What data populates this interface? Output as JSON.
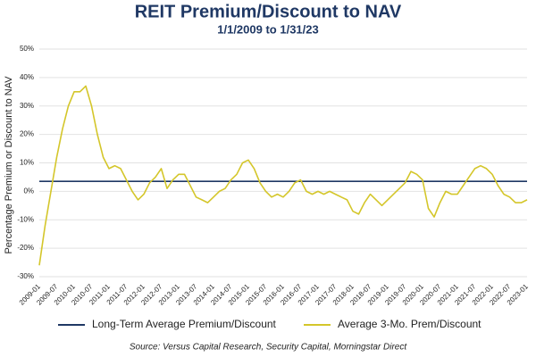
{
  "chart_data": {
    "type": "line",
    "title": "REIT Premium/Discount to NAV",
    "subtitle": "1/1/2009 to 1/31/23",
    "y_label": "Percentage Premium or Discount to NAV",
    "source": "Source: Versus Capital Research, Security Capital, Morningstar Direct",
    "categories": [
      "2009-01",
      null,
      null,
      "2009-07",
      null,
      null,
      "2010-01",
      null,
      null,
      "2010-07",
      null,
      null,
      "2011-01",
      null,
      null,
      "2011-07",
      null,
      null,
      "2012-01",
      null,
      null,
      "2012-07",
      null,
      null,
      "2013-01",
      null,
      null,
      "2013-07",
      null,
      null,
      "2014-01",
      null,
      null,
      "2014-07",
      null,
      null,
      "2015-01",
      null,
      null,
      "2015-07",
      null,
      null,
      "2016-01",
      null,
      null,
      "2016-07",
      null,
      null,
      "2017-01",
      null,
      null,
      "2017-07",
      null,
      null,
      "2018-01",
      null,
      null,
      "2018-07",
      null,
      null,
      "2019-01",
      null,
      null,
      "2019-07",
      null,
      null,
      "2020-01",
      null,
      null,
      "2020-07",
      null,
      null,
      "2021-01",
      null,
      null,
      "2021-07",
      null,
      null,
      "2022-01",
      null,
      null,
      "2022-07",
      null,
      null,
      "2023-01"
    ],
    "series": [
      {
        "name": "Average 3-Mo. Prem/Discount",
        "color": "#d4c62a",
        "values": [
          -26,
          -12,
          0,
          12,
          22,
          30,
          35,
          35,
          37,
          30,
          20,
          12,
          8,
          9,
          8,
          4,
          0,
          -3,
          -1,
          3,
          5,
          8,
          1,
          4,
          6,
          6,
          2,
          -2,
          -3,
          -4,
          -2,
          0,
          1,
          4,
          6,
          10,
          11,
          8,
          3,
          0,
          -2,
          -1,
          -2,
          0,
          3,
          4,
          0,
          -1,
          0,
          -1,
          0,
          -1,
          -2,
          -3,
          -7,
          -8,
          -4,
          -1,
          -3,
          -5,
          -3,
          -1,
          1,
          3,
          7,
          6,
          4,
          -6,
          -9,
          -4,
          0,
          -1,
          -1,
          2,
          5,
          8,
          9,
          8,
          6,
          2,
          -1,
          -2,
          -4,
          -4,
          -3
        ]
      }
    ],
    "reference_lines": [
      {
        "name": "Long-Term Average Premium/Discount",
        "color": "#1f3864",
        "value": 3.5
      }
    ],
    "ylim": [
      -30,
      50
    ],
    "yticks": [
      {
        "value": -30,
        "label": "-30%"
      },
      {
        "value": -20,
        "label": "-20%"
      },
      {
        "value": -10,
        "label": "-10%"
      },
      {
        "value": 0,
        "label": "0%"
      },
      {
        "value": 10,
        "label": "10%"
      },
      {
        "value": 20,
        "label": "20%"
      },
      {
        "value": 30,
        "label": "30%"
      },
      {
        "value": 40,
        "label": "40%"
      },
      {
        "value": 50,
        "label": "50%"
      }
    ],
    "grid": true
  }
}
